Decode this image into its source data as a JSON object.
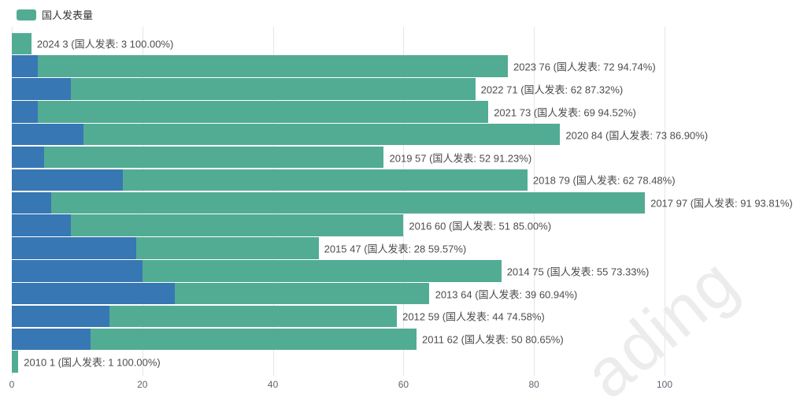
{
  "legend": {
    "items": [
      {
        "label": "国人发表量",
        "color": "#52ac94"
      }
    ]
  },
  "watermark": {
    "text": "ading",
    "color": "#ececec"
  },
  "chart_data": {
    "type": "bar",
    "orientation": "horizontal",
    "stacked": true,
    "title": "",
    "xlabel": "",
    "ylabel": "",
    "x_ticks": [
      0,
      20,
      40,
      60,
      80,
      100
    ],
    "xlim": [
      0,
      122.5
    ],
    "grid": true,
    "legend_position": "top-left",
    "series_colors": {
      "domestic": "#52ac94",
      "other": "#3777b3"
    },
    "rows": [
      {
        "year": 2024,
        "total": 3,
        "domestic": 3,
        "percent": "100.00%",
        "label": "2024 3 (国人发表: 3 100.00%)"
      },
      {
        "year": 2023,
        "total": 76,
        "domestic": 72,
        "percent": "94.74%",
        "label": "2023 76 (国人发表: 72 94.74%)"
      },
      {
        "year": 2022,
        "total": 71,
        "domestic": 62,
        "percent": "87.32%",
        "label": "2022 71 (国人发表: 62 87.32%)"
      },
      {
        "year": 2021,
        "total": 73,
        "domestic": 69,
        "percent": "94.52%",
        "label": "2021 73 (国人发表: 69 94.52%)"
      },
      {
        "year": 2020,
        "total": 84,
        "domestic": 73,
        "percent": "86.90%",
        "label": "2020 84 (国人发表: 73 86.90%)"
      },
      {
        "year": 2019,
        "total": 57,
        "domestic": 52,
        "percent": "91.23%",
        "label": "2019 57 (国人发表: 52 91.23%)"
      },
      {
        "year": 2018,
        "total": 79,
        "domestic": 62,
        "percent": "78.48%",
        "label": "2018 79 (国人发表: 62 78.48%)"
      },
      {
        "year": 2017,
        "total": 97,
        "domestic": 91,
        "percent": "93.81%",
        "label": "2017 97 (国人发表: 91 93.81%)"
      },
      {
        "year": 2016,
        "total": 60,
        "domestic": 51,
        "percent": "85.00%",
        "label": "2016 60 (国人发表: 51 85.00%)"
      },
      {
        "year": 2015,
        "total": 47,
        "domestic": 28,
        "percent": "59.57%",
        "label": "2015 47 (国人发表: 28 59.57%)"
      },
      {
        "year": 2014,
        "total": 75,
        "domestic": 55,
        "percent": "73.33%",
        "label": "2014 75 (国人发表: 55 73.33%)"
      },
      {
        "year": 2013,
        "total": 64,
        "domestic": 39,
        "percent": "60.94%",
        "label": "2013 64 (国人发表: 39 60.94%)"
      },
      {
        "year": 2012,
        "total": 59,
        "domestic": 44,
        "percent": "74.58%",
        "label": "2012 59 (国人发表: 44 74.58%)"
      },
      {
        "year": 2011,
        "total": 62,
        "domestic": 50,
        "percent": "80.65%",
        "label": "2011 62 (国人发表: 50 80.65%)"
      },
      {
        "year": 2010,
        "total": 1,
        "domestic": 1,
        "percent": "100.00%",
        "label": "2010 1 (国人发表: 1 100.00%)"
      }
    ]
  }
}
